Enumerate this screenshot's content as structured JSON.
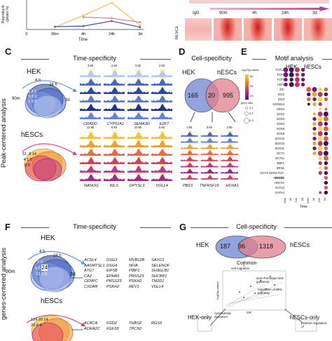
{
  "top_left": {
    "ylabel": "Reproducib. (peaks %)",
    "xlabel": "Time",
    "chart_data": {
      "type": "line",
      "categories": [
        "0",
        "90m",
        "4h",
        "24h",
        "3d"
      ],
      "series": [
        {
          "color": "#e9c46a",
          "values": [
            null,
            8,
            50,
            95,
            15
          ]
        },
        {
          "color": "#c98aa7",
          "values": [
            null,
            null,
            44,
            40,
            26
          ]
        },
        {
          "color": "#4a5f9e",
          "values": [
            null,
            10,
            12,
            30,
            8
          ]
        }
      ]
    }
  },
  "top_right": {
    "row_label": "hESCs",
    "igg_label": "IgG",
    "time_labels": [
      "90m",
      "4h",
      "24h",
      "3d"
    ]
  },
  "panel_C": {
    "letter": "C",
    "title": "Time-specificity",
    "hek_label": "HEK",
    "hesc_label": "hESCs",
    "venn_times": [
      "4 h",
      "24 h",
      "90m",
      "3d"
    ],
    "hek_numbers": [
      "1",
      "3",
      "1",
      "0",
      "2",
      "0",
      "1",
      "3",
      "0"
    ],
    "hesc_numbers": [
      "51",
      "8",
      "14",
      "4",
      "1",
      "0",
      "0",
      "0"
    ],
    "scales_row1": [
      "3 kb",
      "2 kb",
      "3 kb",
      "2 kb"
    ],
    "scales_row2": [
      "12 kb",
      "5 kb",
      "10 kb",
      "5 kb"
    ],
    "genes_row1": [
      "CRADD",
      "CYP51A1",
      "SEMA3D",
      "E2F7"
    ],
    "genes_row2": [
      "NANOG",
      "WLS",
      "DPYSL3",
      "VGLL4"
    ]
  },
  "panel_D": {
    "letter": "D",
    "title": "Cell-specificity",
    "hek_label": "HEK",
    "hesc_label": "hESCs",
    "numbers": [
      "165",
      "20",
      "995"
    ],
    "scales": [
      "2 kb",
      "3 kb",
      "3 kb"
    ],
    "genes": [
      "PBX3",
      "TNFRSF19",
      "HOXA1"
    ]
  },
  "panel_E": {
    "letter": "E",
    "title": "Motif analysis",
    "hek_label": "HEK",
    "hesc_label": "hESCs",
    "legend_title": "-log10(p-value)",
    "legend_ticks": [
      "60",
      "40",
      "20"
    ],
    "size_title": "gene ratio",
    "size_ticks": [
      "0.1",
      "0.2",
      "0.3"
    ],
    "time_label": "Time",
    "motifs": [
      "TCFL2",
      "TCF7",
      "TCF3",
      "LEF1",
      "ZIC",
      "ZIC2",
      "ZIC3",
      "HOXB13",
      "CDX4",
      "SOX2",
      "SOX3",
      "SOX4",
      "SOX9",
      "SOX6",
      "SOX10",
      "SOX15",
      "SOX21",
      "OCT4",
      "OCT11",
      "EBF1",
      "BRN1",
      "OCT4-SOX2-TCF-NANOG",
      "TEAD1",
      "HNF4A",
      "GATA2",
      "GATA4"
    ],
    "columns": [
      "90m",
      "4h",
      "24h",
      "3d",
      "90m",
      "4h",
      "24h",
      "3d"
    ]
  },
  "side_labels": {
    "peak": "Peak-centered analysis",
    "genes": "genes-centered analysis"
  },
  "panel_F": {
    "letter": "F",
    "title": "Time-specificity",
    "hek_label": "HEK",
    "hesc_label": "hESCs",
    "venn_times": [
      "4 h",
      "24 h",
      "90m",
      "3d"
    ],
    "hek_numbers": [
      "7",
      "3",
      "5",
      "0",
      "24",
      "12",
      "1",
      "0"
    ],
    "hesc_numbers": [
      "134",
      "20",
      "14",
      "20",
      "9",
      "4"
    ],
    "hek_gene_cols": [
      [
        "ACSL4",
        "AADMTSL1",
        "ATG7",
        "CA2",
        "CENPC",
        "CXDAR"
      ],
      [
        "DSG3",
        "DSG4",
        "EIF5B",
        "EPHA5",
        "PRSS23",
        "PSKH2"
      ],
      [
        "MVB12B",
        "NFIA",
        "PIBF1",
        "PRSS23",
        "PSKH2",
        "REV1"
      ],
      [
        "SAXO1",
        "SELENOF",
        "SH3GLB1",
        "SHCBP1",
        "TM2D1",
        "VGLL4"
      ]
    ],
    "hesc_gene_cols": [
      [
        "ACACA",
        "ADRA2C"
      ],
      [
        "FGD2",
        "FGF18"
      ],
      [
        "THBS2",
        "TPCN2"
      ],
      [
        "RGS9"
      ]
    ]
  },
  "panel_G": {
    "letter": "G",
    "title": "Cell-specificity",
    "hek_label": "HEK",
    "hesc_label": "hESCs",
    "numbers": [
      "187",
      "96",
      "1318"
    ],
    "common_label": "Common",
    "terms": [
      "cell migration",
      "axon formation and guidance",
      "regulation of Wnt pathway",
      "cytoskeletal dynamics",
      "positive regulation of"
    ],
    "ylabel": "-log10(p-value)",
    "xlabel": "OR",
    "hek_only": "HEK-only",
    "hesc_only": "hESCs-only"
  }
}
